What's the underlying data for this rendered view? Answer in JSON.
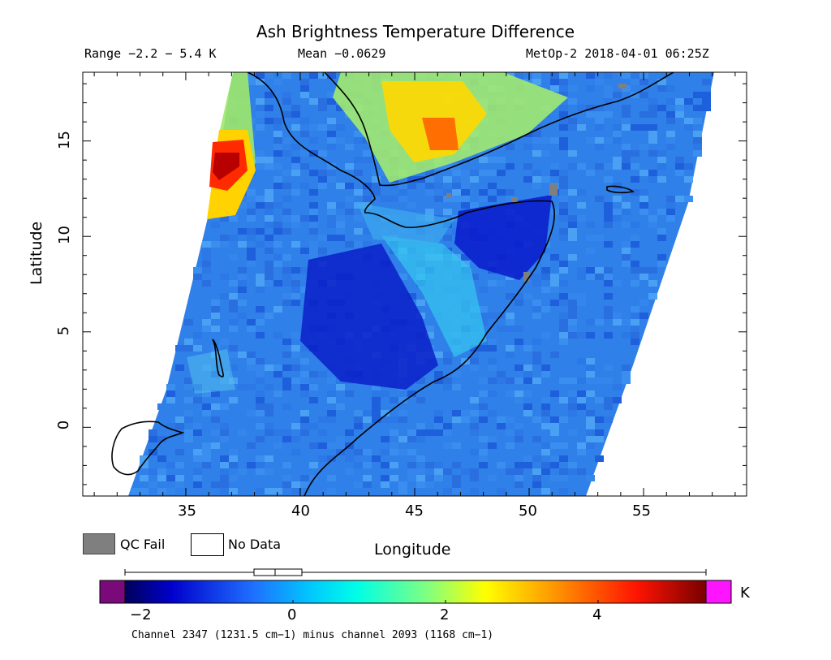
{
  "header": {
    "title": "Ash Brightness Temperature Difference",
    "range": "Range −2.2 − 5.4 K",
    "mean": "Mean −0.0629",
    "satellite": "MetOp-2 2018-04-01 06:25Z"
  },
  "map": {
    "x_axis_label": "Longitude",
    "y_axis_label": "Latitude",
    "lon_range": [
      30.5,
      59.5
    ],
    "lat_range": [
      -3.6,
      18.6
    ],
    "lon_ticks": [
      "35",
      "40",
      "45",
      "50",
      "55"
    ],
    "lat_ticks": [
      "0",
      "5",
      "10",
      "15"
    ],
    "swath_color_dominant": "#2f7de6"
  },
  "legend": {
    "qc_fail": "QC Fail",
    "no_data": "No Data",
    "qc_color": "#7f7f7f"
  },
  "colorbar": {
    "unit": "K",
    "ticks": [
      "−2",
      "0",
      "2",
      "4"
    ],
    "footer": "Channel 2347 (1231.5 cm−1) minus channel 2093 (1168 cm−1)"
  }
}
